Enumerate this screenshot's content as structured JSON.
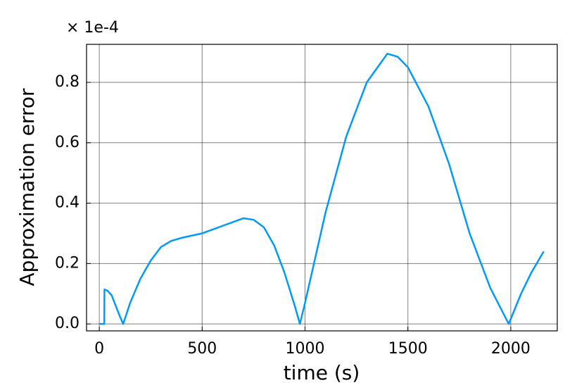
{
  "chart_data": {
    "type": "line",
    "x_label": "time (s)",
    "y_label": "Approximation error",
    "y_multiplier": "× 1e-4",
    "x": [
      0,
      24,
      25,
      40,
      60,
      80,
      100,
      116,
      150,
      200,
      250,
      300,
      350,
      400,
      500,
      600,
      700,
      750,
      800,
      850,
      900,
      950,
      975,
      1000,
      1100,
      1200,
      1300,
      1400,
      1450,
      1500,
      1600,
      1700,
      1800,
      1900,
      1990,
      2050,
      2100,
      2160
    ],
    "series": [
      {
        "color": "#009af9",
        "values": [
          0,
          0,
          0.114,
          0.11,
          0.095,
          0.06,
          0.025,
          0,
          0.07,
          0.15,
          0.21,
          0.255,
          0.275,
          0.285,
          0.3,
          0.325,
          0.35,
          0.345,
          0.32,
          0.26,
          0.17,
          0.06,
          0,
          0.07,
          0.37,
          0.62,
          0.8,
          0.895,
          0.885,
          0.85,
          0.72,
          0.53,
          0.3,
          0.12,
          0,
          0.1,
          0.17,
          0.24
        ]
      }
    ],
    "xlim": [
      -62,
      2226
    ],
    "ylim": [
      -0.023,
      0.926
    ],
    "xticks": [
      0,
      500,
      1000,
      1500,
      2000
    ],
    "yticks": [
      {
        "value": 0,
        "label": "0.0"
      },
      0.2,
      0.4,
      0.6,
      0.8
    ],
    "grid": true
  }
}
